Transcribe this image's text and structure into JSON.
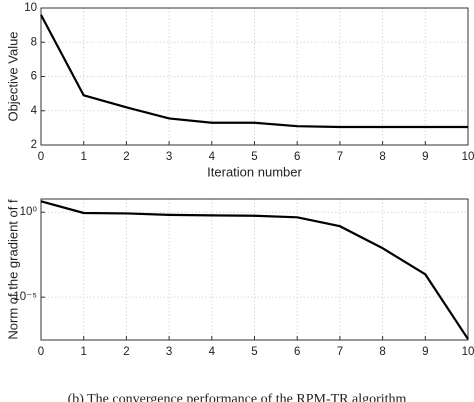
{
  "chart_data": [
    {
      "type": "line",
      "xlabel": "Iteration number",
      "ylabel": "Objective Value",
      "x": [
        0,
        1,
        2,
        3,
        4,
        5,
        6,
        7,
        8,
        9,
        10
      ],
      "series": [
        {
          "color": "#000000",
          "values": [
            9.6,
            4.9,
            4.2,
            3.55,
            3.3,
            3.3,
            3.1,
            3.05,
            3.05,
            3.05,
            3.05
          ]
        }
      ],
      "xlim": [
        0,
        10
      ],
      "xticks": [
        0,
        1,
        2,
        3,
        4,
        5,
        6,
        7,
        8,
        9,
        10
      ],
      "ylim": [
        2,
        10
      ],
      "yticks": [
        2,
        4,
        6,
        8,
        10
      ],
      "grid": true
    },
    {
      "type": "line",
      "ylabel": "Norm of the gradient of f",
      "x": [
        0,
        1,
        2,
        3,
        4,
        5,
        6,
        7,
        8,
        9,
        10
      ],
      "series": [
        {
          "color": "#000000",
          "values": [
            4.4,
            0.9,
            0.85,
            0.7,
            0.65,
            0.62,
            0.5,
            0.15,
            0.0076,
            0.00022,
            3.4e-08
          ]
        }
      ],
      "xlim": [
        0,
        10
      ],
      "xticks": [
        0,
        1,
        2,
        3,
        4,
        5,
        6,
        7,
        8,
        9,
        10
      ],
      "ylim": [
        3e-08,
        6
      ],
      "ylog": true,
      "yticks": [
        {
          "value": 1,
          "label": "10⁰"
        },
        {
          "value": 1e-05,
          "label": "10⁻⁵"
        }
      ],
      "grid": true
    }
  ],
  "caption": "(b) The convergence performance of the RPM-TR algorithm"
}
